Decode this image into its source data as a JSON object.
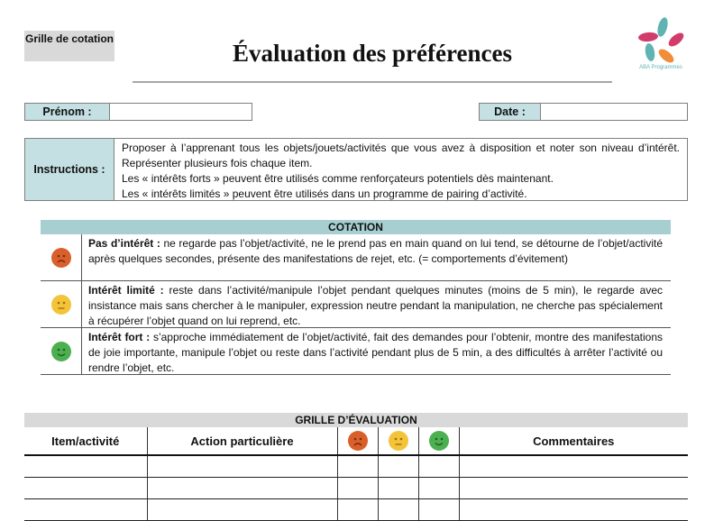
{
  "header": {
    "badge": "Grille de cotation",
    "title": "Évaluation des préférences",
    "logo_text": "ABA Programmes"
  },
  "fields": {
    "prenom_label": "Prénom :",
    "prenom_value": "",
    "date_label": "Date :",
    "date_value": ""
  },
  "instructions": {
    "label": "Instructions :",
    "lines": [
      "Proposer à l’apprenant tous les objets/jouets/activités que vous avez à disposition et noter son niveau d’intérêt. Représenter plusieurs fois chaque item.",
      "Les « intérêts forts » peuvent être utilisés comme renforçateurs potentiels dès maintenant.",
      "Les « intérêts limités » peuvent être utilisés dans un programme de pairing d’activité."
    ]
  },
  "cotation": {
    "title": "COTATION",
    "rows": [
      {
        "icon": "sad-face-icon",
        "color": "#d9602a",
        "term": "Pas d’intérêt :",
        "text": " ne regarde pas l’objet/activité, ne le prend pas en main quand on lui tend, se détourne de l’objet/activité après quelques secondes, présente des manifestations de rejet, etc. (= comportements d’évitement)"
      },
      {
        "icon": "neutral-face-icon",
        "color": "#f3c33a",
        "term": "Intérêt limité :",
        "text": " reste dans l’activité/manipule l’objet pendant quelques minutes (moins de 5 min), le regarde avec insistance mais sans chercher à le manipuler, expression neutre pendant la manipulation, ne cherche pas spécialement à récupérer l’objet quand on lui reprend, etc."
      },
      {
        "icon": "happy-face-icon",
        "color": "#4caf50",
        "term": "Intérêt fort :",
        "text": " s’approche immédiatement de l’objet/activité, fait des demandes pour l’obtenir, montre des manifestations de joie importante, manipule l’objet ou reste dans l’activité pendant plus de 5 min, a des difficultés à arrêter l’activité ou rendre l’objet, etc."
      }
    ]
  },
  "grid": {
    "title": "GRILLE D’ÉVALUATION",
    "columns": {
      "item": "Item/activité",
      "action": "Action particulière",
      "comments": "Commentaires"
    }
  },
  "colors": {
    "label_bg": "#c5e0e3",
    "cotation_bg": "#a7cfd1",
    "gray_bg": "#d9d9d9"
  }
}
